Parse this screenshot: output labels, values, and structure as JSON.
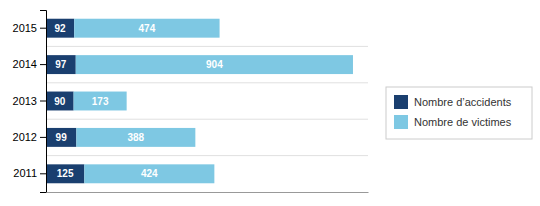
{
  "chart_data": {
    "type": "bar",
    "orientation": "horizontal",
    "stacked": true,
    "data_labels": true,
    "tick_labels": "y",
    "legend": "right",
    "categories": [
      "2015",
      "2014",
      "2013",
      "2012",
      "2011"
    ],
    "series": [
      {
        "name": "Nombre d’accidents",
        "color": "#1a3f6f",
        "values": [
          92,
          97,
          90,
          99,
          125
        ]
      },
      {
        "name": "Nombre de victimes",
        "color": "#7ec8e3",
        "values": [
          474,
          904,
          173,
          388,
          424
        ]
      }
    ],
    "xlim": [
      0,
      1050
    ]
  }
}
